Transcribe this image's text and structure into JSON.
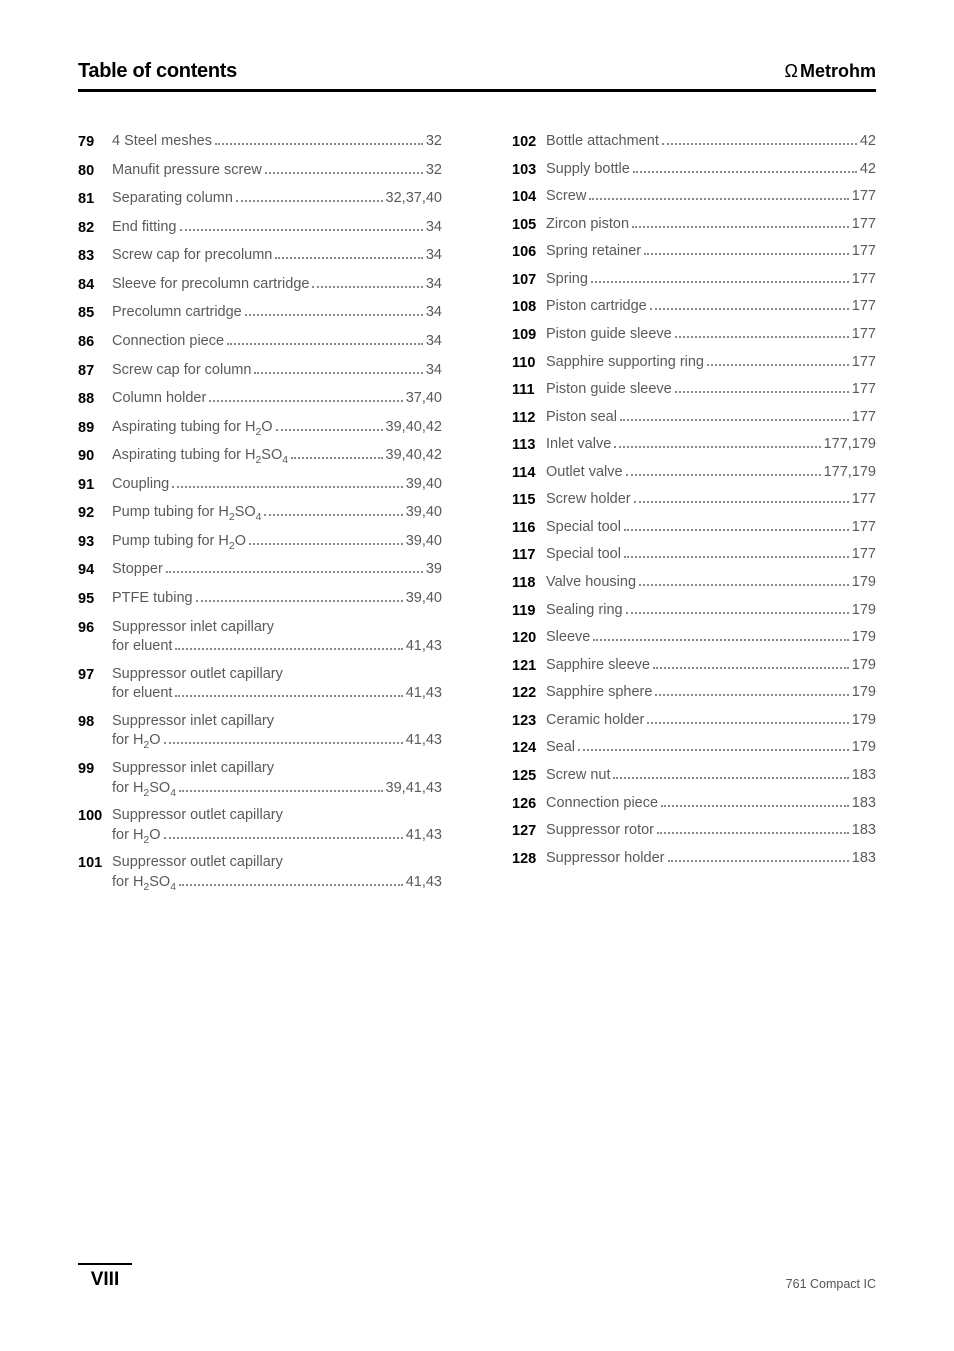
{
  "header": {
    "title": "Table of contents",
    "brand": "Metrohm",
    "brand_symbol": "Ω"
  },
  "colors": {
    "text": "#4a4a4a",
    "heading": "#000000",
    "rule": "#000000",
    "dots": "#888888",
    "background": "#ffffff"
  },
  "typography": {
    "body_fontsize": 14.5,
    "header_fontsize": 20,
    "brand_fontsize": 18,
    "footer_roman_fontsize": 19,
    "footer_doc_fontsize": 12.5
  },
  "left": [
    {
      "n": "79",
      "label": "4 Steel meshes",
      "page": "32"
    },
    {
      "n": "80",
      "label": "Manufit pressure screw",
      "page": "32"
    },
    {
      "n": "81",
      "label": "Separating column",
      "page": "32,37,40"
    },
    {
      "n": "82",
      "label": "End fitting",
      "page": "34"
    },
    {
      "n": "83",
      "label": "Screw cap for precolumn",
      "page": "34"
    },
    {
      "n": "84",
      "label": "Sleeve for precolumn cartridge",
      "page": "34"
    },
    {
      "n": "85",
      "label": "Precolumn cartridge",
      "page": "34"
    },
    {
      "n": "86",
      "label": "Connection piece",
      "page": "34"
    },
    {
      "n": "87",
      "label": "Screw cap for column",
      "page": "34"
    },
    {
      "n": "88",
      "label": "Column holder",
      "page": "37,40"
    },
    {
      "n": "89",
      "label_html": "Aspirating tubing for H<sub>2</sub>O",
      "page": "39,40,42"
    },
    {
      "n": "90",
      "label_html": "Aspirating tubing for H<sub>2</sub>SO<sub>4</sub>",
      "page": "39,40,42"
    },
    {
      "n": "91",
      "label": "Coupling",
      "page": "39,40"
    },
    {
      "n": "92",
      "label_html": "Pump tubing for H<sub>2</sub>SO<sub>4</sub>",
      "page": "39,40"
    },
    {
      "n": "93",
      "label_html": "Pump tubing for H<sub>2</sub>O",
      "page": "39,40"
    },
    {
      "n": "94",
      "label": "Stopper",
      "page": "39"
    },
    {
      "n": "95",
      "label": "PTFE tubing",
      "page": "39,40"
    },
    {
      "n": "96",
      "label": "Suppressor inlet capillary",
      "sub": "for eluent",
      "page": "41,43"
    },
    {
      "n": "97",
      "label": "Suppressor outlet capillary",
      "sub": "for eluent",
      "page": "41,43"
    },
    {
      "n": "98",
      "label": "Suppressor inlet capillary",
      "sub_html": "for H<sub>2</sub>O",
      "page": "41,43"
    },
    {
      "n": "99",
      "label": "Suppressor inlet capillary",
      "sub_html": "for H<sub>2</sub>SO<sub>4</sub>",
      "page": "39,41,43"
    },
    {
      "n": "100",
      "label": "Suppressor outlet capillary",
      "sub_html": "for H<sub>2</sub>O",
      "page": "41,43"
    },
    {
      "n": "101",
      "label": "Suppressor outlet capillary",
      "sub_html": "for H<sub>2</sub>SO<sub>4</sub>",
      "page": "41,43"
    }
  ],
  "right": [
    {
      "n": "102",
      "label": "Bottle attachment",
      "page": "42"
    },
    {
      "n": "103",
      "label": "Supply bottle",
      "page": "42"
    },
    {
      "n": "104",
      "label": "Screw",
      "page": "177"
    },
    {
      "n": "105",
      "label": "Zircon piston",
      "page": "177"
    },
    {
      "n": "106",
      "label": "Spring retainer",
      "page": "177"
    },
    {
      "n": "107",
      "label": "Spring",
      "page": "177"
    },
    {
      "n": "108",
      "label": "Piston cartridge",
      "page": "177"
    },
    {
      "n": "109",
      "label": "Piston guide sleeve",
      "page": "177"
    },
    {
      "n": "110",
      "label": "Sapphire supporting ring",
      "page": "177"
    },
    {
      "n": "111",
      "label": "Piston guide sleeve",
      "page": "177"
    },
    {
      "n": "112",
      "label": "Piston seal",
      "page": "177"
    },
    {
      "n": "113",
      "label": "Inlet valve",
      "page": "177,179"
    },
    {
      "n": "114",
      "label": "Outlet valve",
      "page": "177,179"
    },
    {
      "n": "115",
      "label": "Screw holder",
      "page": "177"
    },
    {
      "n": "116",
      "label": "Special tool",
      "page": "177"
    },
    {
      "n": "117",
      "label": "Special tool",
      "page": "177"
    },
    {
      "n": "118",
      "label": "Valve housing",
      "page": "179"
    },
    {
      "n": "119",
      "label": "Sealing ring",
      "page": "179"
    },
    {
      "n": "120",
      "label": "Sleeve",
      "page": "179"
    },
    {
      "n": "121",
      "label": "Sapphire sleeve",
      "page": "179"
    },
    {
      "n": "122",
      "label": "Sapphire sphere",
      "page": "179"
    },
    {
      "n": "123",
      "label": "Ceramic holder",
      "page": "179"
    },
    {
      "n": "124",
      "label": "Seal",
      "page": "179"
    },
    {
      "n": "125",
      "label": "Screw nut",
      "page": "183"
    },
    {
      "n": "126",
      "label": "Connection piece",
      "page": "183"
    },
    {
      "n": "127",
      "label": "Suppressor rotor",
      "page": "183"
    },
    {
      "n": "128",
      "label": "Suppressor holder",
      "page": "183"
    }
  ],
  "footer": {
    "roman": "VIII",
    "doc": "761 Compact IC"
  }
}
